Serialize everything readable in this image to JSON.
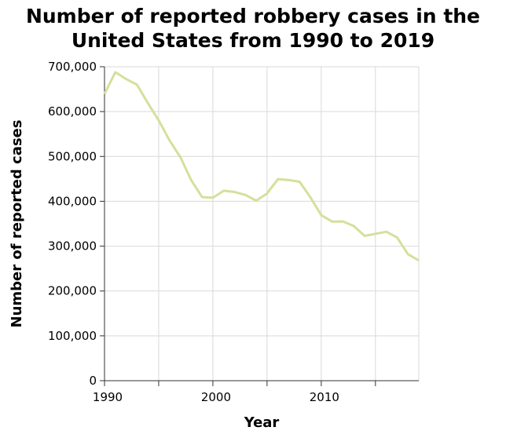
{
  "chart_data": {
    "type": "line",
    "title_lines": [
      "Number of reported robbery cases in the",
      "United States from 1990 to 2019"
    ],
    "xlabel": "Year",
    "ylabel": "Number of reported cases",
    "x_ticks": [
      1990,
      2000,
      2010
    ],
    "x_tick_labels": [
      "1990",
      "2000",
      "2010"
    ],
    "x_minor_ticks": [
      1995,
      2005,
      2015
    ],
    "y_ticks": [
      0,
      100000,
      200000,
      300000,
      400000,
      500000,
      600000,
      700000
    ],
    "y_tick_labels": [
      "0",
      "100,000",
      "200,000",
      "300,000",
      "400,000",
      "500,000",
      "600,000",
      "700,000"
    ],
    "xlim": [
      1990,
      2019
    ],
    "ylim": [
      0,
      700000
    ],
    "grid": true,
    "line_color": "#d4e09b",
    "series": [
      {
        "name": "Robbery cases",
        "x": [
          1990,
          1991,
          1992,
          1993,
          1994,
          1995,
          1996,
          1997,
          1998,
          1999,
          2000,
          2001,
          2002,
          2003,
          2004,
          2005,
          2006,
          2007,
          2008,
          2009,
          2010,
          2011,
          2012,
          2013,
          2014,
          2015,
          2016,
          2017,
          2018,
          2019
        ],
        "values": [
          639271,
          687732,
          672478,
          659870,
          618949,
          580509,
          535594,
          498534,
          447186,
          409371,
          408016,
          423557,
          420806,
          414235,
          401470,
          417438,
          449246,
          447324,
          443563,
          408742,
          369089,
          354746,
          355051,
          345031,
          322905,
          327374,
          332198,
          319356,
          282061,
          267988
        ]
      }
    ]
  }
}
